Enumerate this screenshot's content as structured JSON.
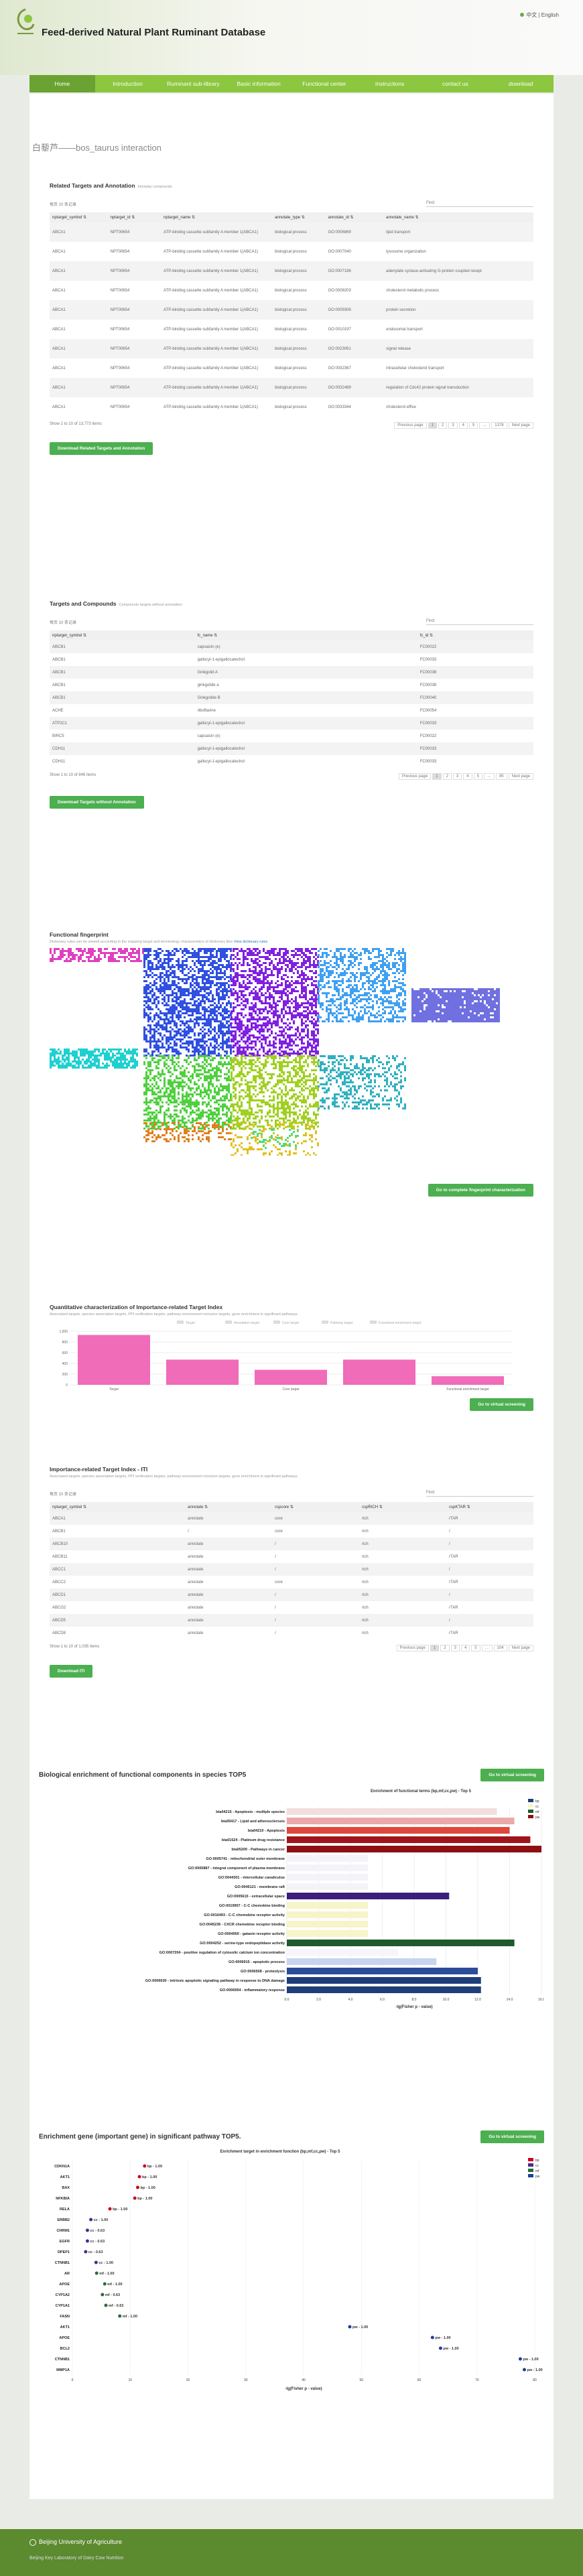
{
  "site": {
    "title": "Feed-derived Natural Plant Ruminant Database",
    "lang": "中文 | English"
  },
  "nav": [
    "Home",
    "Introduction",
    "Ruminant sub-library",
    "Basic information",
    "Functional center",
    "Instructions",
    "contact us",
    "download"
  ],
  "page_heading": "白藜芦——bos_taurus interaction",
  "targets": {
    "title": "Related Targets and Annotation",
    "subtitle": "Interplay compounds",
    "show": "每页",
    "show_n": "10",
    "show_unit": "条记录",
    "search": "Find:",
    "headers": [
      "nptarget_symbol",
      "nptarget_id",
      "nptarget_name",
      "annotate_type",
      "annotate_id",
      "annotate_name"
    ],
    "rows": [
      [
        "ABCA1",
        "NPT00654",
        "ATP-binding cassette subfamily A member 1(ABCA1)",
        "biological process",
        "GO:0006869",
        "lipid transport"
      ],
      [
        "ABCA1",
        "NPT00654",
        "ATP-binding cassette subfamily A member 1(ABCA1)",
        "biological process",
        "GO:0007040",
        "lysosome organization"
      ],
      [
        "ABCA1",
        "NPT00654",
        "ATP-binding cassette subfamily A member 1(ABCA1)",
        "biological process",
        "GO:0007186",
        "adenylate cyclase-activating G-protein coupled recept"
      ],
      [
        "ABCA1",
        "NPT00654",
        "ATP-binding cassette subfamily A member 1(ABCA1)",
        "biological process",
        "GO:0008203",
        "cholesterol metabolic process"
      ],
      [
        "ABCA1",
        "NPT00654",
        "ATP-binding cassette subfamily A member 1(ABCA1)",
        "biological process",
        "GO:0009306",
        "protein secretion"
      ],
      [
        "ABCA1",
        "NPT00654",
        "ATP-binding cassette subfamily A member 1(ABCA1)",
        "biological process",
        "GO:0010197",
        "endosomal transport"
      ],
      [
        "ABCA1",
        "NPT00654",
        "ATP-binding cassette subfamily A member 1(ABCA1)",
        "biological process",
        "GO:0023061",
        "signal release"
      ],
      [
        "ABCA1",
        "NPT00654",
        "ATP-binding cassette subfamily A member 1(ABCA1)",
        "biological process",
        "GO:0032367",
        "intracellular cholesterol transport"
      ],
      [
        "ABCA1",
        "NPT00654",
        "ATP-binding cassette subfamily A member 1(ABCA1)",
        "biological process",
        "GO:0032489",
        "regulation of Cdc42 protein signal transduction"
      ],
      [
        "ABCA1",
        "NPT00654",
        "ATP-binding cassette subfamily A member 1(ABCA1)",
        "biological process",
        "GO:0033344",
        "cholesterol efflux"
      ]
    ],
    "info": "Show 1 to 10 of 13,773 items",
    "prev": "Previous page",
    "pages": [
      "1",
      "2",
      "3",
      "4",
      "5",
      "…",
      "1378"
    ],
    "next": "Next page",
    "download": "Download Related Targets and Annotation"
  },
  "compounds": {
    "title": "Targets and Compounds",
    "subtitle": "Compounds targets without annotation",
    "show": "每页",
    "show_n": "10",
    "show_unit": "条记录",
    "search": "Find:",
    "headers": [
      "nptarget_symbol",
      "fc_name",
      "fc_id"
    ],
    "rows": [
      [
        "ABCB1",
        "capsaicin (e)",
        "FC00022"
      ],
      [
        "ABCB1",
        "gallocyl-1-epigallocatechol",
        "FC00033"
      ],
      [
        "ABCB1",
        "Ginkgolid A",
        "FC00038"
      ],
      [
        "ABCB1",
        "ginkgolide a",
        "FC00038"
      ],
      [
        "ABCB1",
        "Ginkgolide B",
        "FC00040"
      ],
      [
        "ACHE",
        "riboflavine",
        "FC00054"
      ],
      [
        "ATP2C1",
        "gallocyl-1-epigallocatechol",
        "FC00033"
      ],
      [
        "BIRC5",
        "capsaicin (e)",
        "FC00022"
      ],
      [
        "CDH11",
        "gallocyl-1-epigallocatechol",
        "FC00033"
      ],
      [
        "CDH11",
        "gallocyl-1-epigallocatechol",
        "FC00033"
      ]
    ],
    "info": "Show 1 to 10 of 846 items",
    "prev": "Previous page",
    "pages": [
      "1",
      "2",
      "3",
      "4",
      "5",
      "…",
      "85"
    ],
    "next": "Next page",
    "download": "Download Targets without Annotation"
  },
  "fingerprint": {
    "title": "Functional fingerprint",
    "sub": "Dictionary rules can be viewed according to the mapping target and terminology characteristics of dictionary files ",
    "link": "View dictionary rules",
    "button": "Go to complete fingerprint characterization"
  },
  "quant": {
    "title": "Quantitative characterization of Importance-related Target Index",
    "sub": "Associated targets, species association targets, PPI verification targets, pathway environment inclusion targets, gene enrichment in significant pathways.",
    "button": "Go to virtual screening"
  },
  "chart_data": [
    {
      "type": "bar",
      "categories": [
        "Target",
        "",
        "Core target",
        "",
        "Functional enrichment target"
      ],
      "values": [
        930,
        470,
        280,
        470,
        160
      ],
      "ylim": [
        0,
        1000
      ],
      "yticks": [
        0,
        200,
        400,
        600,
        800,
        1000
      ],
      "legend": [
        "Target",
        "Annotation target",
        "Core target",
        "Pathway target",
        "Functional enrichment target"
      ],
      "color": "#f06bb8"
    },
    {
      "type": "bar",
      "title": "Enrichment of functional terms  (bp,mf,cc,pw) - Top 5",
      "categories": [
        "bta04215 - Apoptosis - multiple species",
        "bta05417 - Lipid and atherosclerosis",
        "bta04210 - Apoptosis",
        "bta01524 - Platinum drug resistance",
        "bta05200 - Pathways in cancer",
        "GO:0005741 - mitochondrial outer membrane",
        "GO:0005887 - integral component of plasma membrane",
        "GO:0044301 - intercellular canaliculus",
        "GO:0045121 - membrane raft",
        "GO:0005615 - extracellular space",
        "GO:0019957 - C-C chemokine binding",
        "GO:0016493 - C-C chemokine receptor activity",
        "GO:0045236 - CXCR chemokine receptor binding",
        "GO:0004950 - gatasin receptor activity",
        "GO:0004252 - serine-type endopeptidase activity",
        "GO:0007204 - positive regulation of cytosolic calcium ion concentration",
        "GO:0006915 - apoptotic process",
        "GO:0006508 - proteolysis",
        "GO:0006630 - intrinsic apoptotic signaling pathway in response to DNA damage",
        "GO:0006954 - inflammatory response"
      ],
      "values": [
        13.2,
        14.3,
        14.0,
        15.3,
        16.6,
        5.1,
        5.1,
        5.1,
        5.1,
        10.2,
        5.1,
        5.1,
        5.1,
        5.1,
        14.3,
        7.0,
        9.4,
        12.0,
        12.2,
        12.2
      ],
      "xlim": [
        0,
        16
      ],
      "xticks": [
        "0.0",
        "2.0",
        "4.0",
        "6.0",
        "8.0",
        "10.0",
        "12.0",
        "14.0",
        "16.0"
      ],
      "xlabel": "-lg(Fisher p - value)",
      "legend": [
        "bp",
        "cc",
        "mf",
        "pw"
      ]
    },
    {
      "type": "scatter",
      "title": "Enrichment target in enrichment function  (bp,mf,cc,pw) - Top 5",
      "categories": [
        "CDKN1A",
        "AKT1",
        "BAX",
        "NFKBIA",
        "RELA",
        "ERBB2",
        "CHRM1",
        "EGFR",
        "DPEP1",
        "CTNNB1",
        "AR",
        "APOE",
        "CYP1A2",
        "CYP1A1",
        "FASN",
        "AKT1",
        "APOE",
        "BCL2",
        "CTNNB1",
        "MMP1A"
      ],
      "values": [
        12.5,
        11.6,
        11.3,
        10.8,
        6.5,
        3.2,
        2.6,
        2.6,
        2.3,
        4.1,
        4.2,
        5.6,
        5.2,
        5.8,
        8.2,
        48.0,
        62.3,
        63.7,
        77.5,
        78.2
      ],
      "labels": [
        "bp - 1.00",
        "bp - 1.00",
        "bp - 1.00",
        "bp - 1.00",
        "bp - 1.00",
        "cc - 1.00",
        "cc - 0.63",
        "cc - 0.63",
        "cc - 0.63",
        "cc - 1.00",
        "mf - 1.00",
        "mf - 1.00",
        "mf - 0.63",
        "mf - 0.63",
        "mf - 1.00",
        "pw - 1.00",
        "pw - 1.00",
        "pw - 1.00",
        "pw - 1.00",
        "pw - 1.00"
      ],
      "xlim": [
        0,
        80
      ],
      "xticks": [
        "0",
        "10",
        "20",
        "30",
        "40",
        "50",
        "60",
        "70",
        "80"
      ],
      "xlabel": "-lg(Fisher p - value)",
      "legend": [
        "bp",
        "cc",
        "mf",
        "pw"
      ]
    }
  ],
  "iti": {
    "title": "Importance-related Target Index - ITI",
    "sub": "Associated targets, species association targets, PPI verification targets, pathway environment inclusion targets, gene enrichment in significant pathways.",
    "show": "每页",
    "show_n": "10",
    "show_unit": "条记录",
    "search": "Find:",
    "headers": [
      "nptarget_symbol",
      "annotate",
      "cspcore",
      "cspRICH",
      "cspKTAR"
    ],
    "rows": [
      [
        "ABCA1",
        "annotate",
        "core",
        "rich",
        "rTAR"
      ],
      [
        "ABCB1",
        "/",
        "core",
        "rich",
        "/"
      ],
      [
        "ABCB10",
        "annotate",
        "/",
        "rich",
        "/"
      ],
      [
        "ABCB11",
        "annotate",
        "/",
        "rich",
        "rTAR"
      ],
      [
        "ABCC1",
        "annotate",
        "/",
        "rich",
        "/"
      ],
      [
        "ABCC2",
        "annotate",
        "core",
        "rich",
        "rTAR"
      ],
      [
        "ABCD1",
        "annotate",
        "/",
        "rich",
        "/"
      ],
      [
        "ABCG2",
        "annotate",
        "/",
        "rich",
        "rTAR"
      ],
      [
        "ABCD5",
        "annotate",
        "/",
        "rich",
        "/"
      ],
      [
        "ABCD8",
        "annotate",
        "/",
        "rich",
        "rTAR"
      ]
    ],
    "info": "Show 1 to 10 of 1,035 items",
    "prev": "Previous page",
    "pages": [
      "1",
      "2",
      "3",
      "4",
      "5",
      "…",
      "104"
    ],
    "next": "Next page",
    "download": "Download ITI"
  },
  "bio": {
    "title": "Biological enrichment of functional components in species TOP5",
    "button": "Go to virtual screening"
  },
  "gene": {
    "title": "Enrichment gene (important gene) in significant pathway TOP5.",
    "button": "Go to virtual screening"
  },
  "footer": {
    "name": "Beijing University of Agriculture",
    "sub": "Beijing Key Laboratory of Dairy Cow Nutrition"
  },
  "colors": {
    "green": "#8dc63f",
    "pink": "#f06bb8",
    "bp": "#1f3d7a",
    "cc": "#f6f4c9",
    "mf": "#1f5a2e",
    "pw": "#8e0f12"
  }
}
